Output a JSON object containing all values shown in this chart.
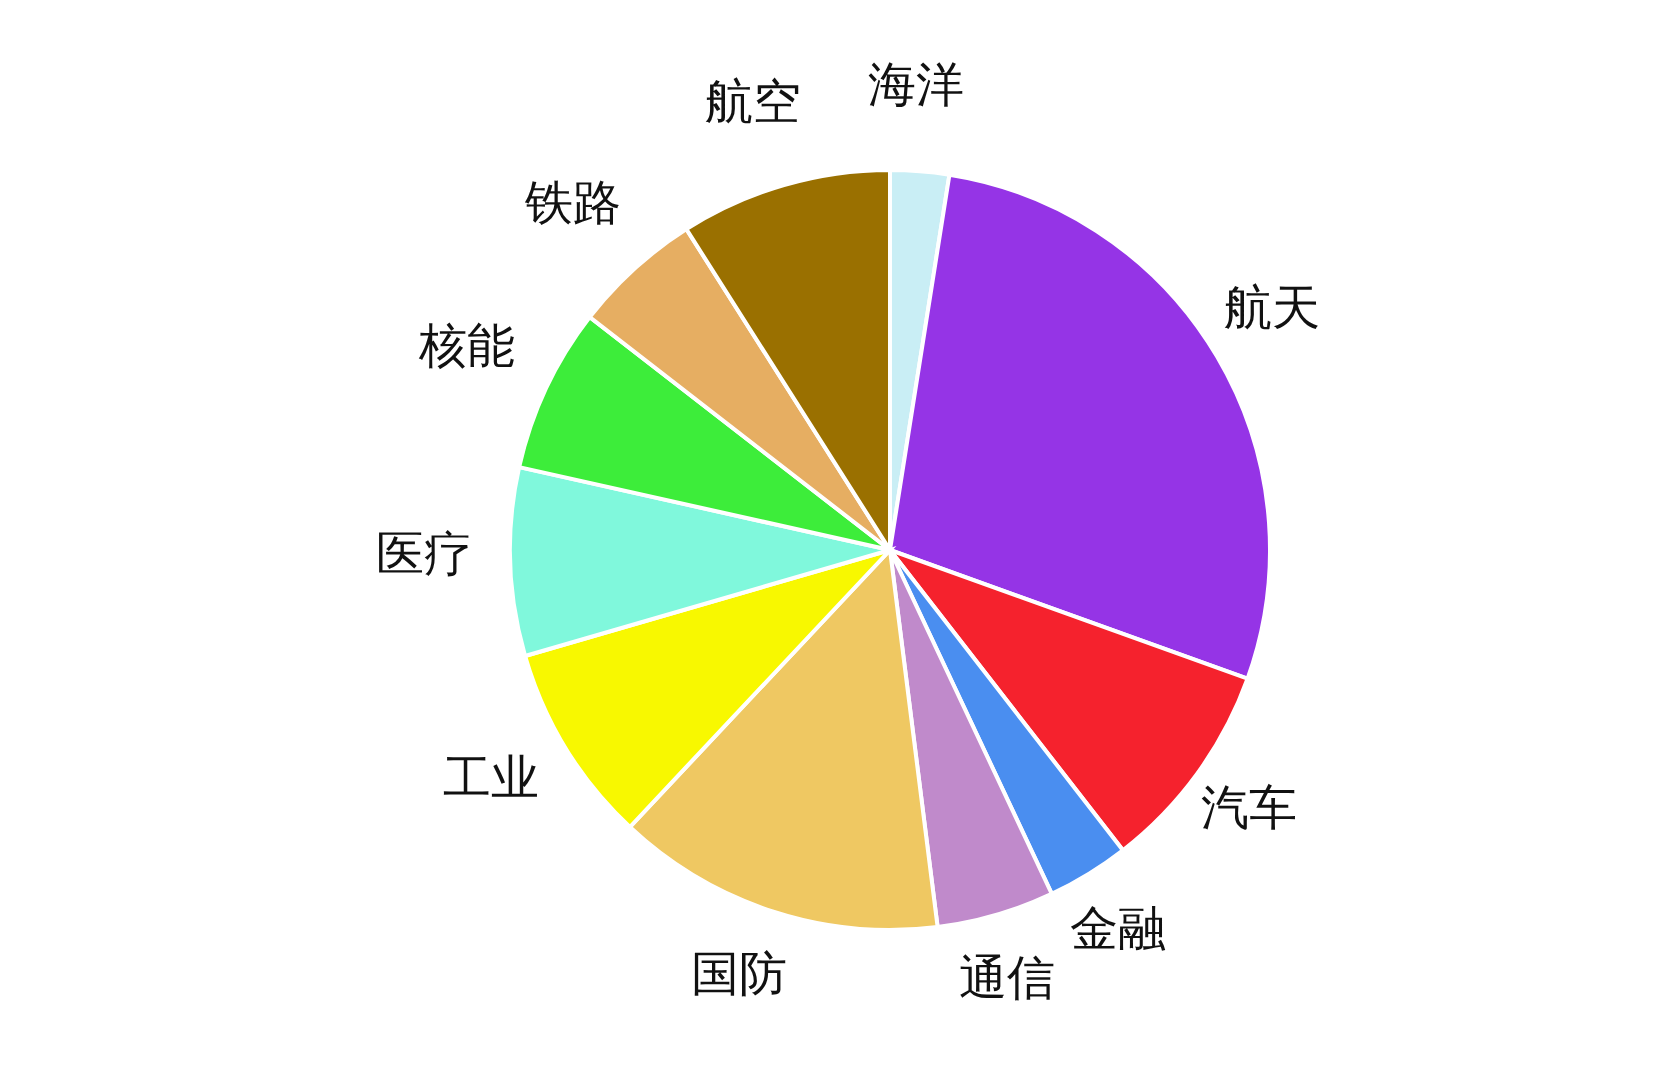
{
  "chart_data": {
    "type": "pie",
    "categories": [
      "海洋",
      "航天",
      "汽车",
      "金融",
      "通信",
      "国防",
      "工业",
      "医疗",
      "核能",
      "铁路",
      "航空"
    ],
    "values": [
      2.5,
      28,
      9,
      3.5,
      5,
      14,
      8.5,
      8,
      7,
      5.5,
      9
    ],
    "colors": [
      "#c9eef5",
      "#9534e6",
      "#f5222d",
      "#4a8ef0",
      "#c08acb",
      "#efc862",
      "#f8f800",
      "#80f8dc",
      "#3ded3a",
      "#e6ae62",
      "#9a7000"
    ]
  }
}
